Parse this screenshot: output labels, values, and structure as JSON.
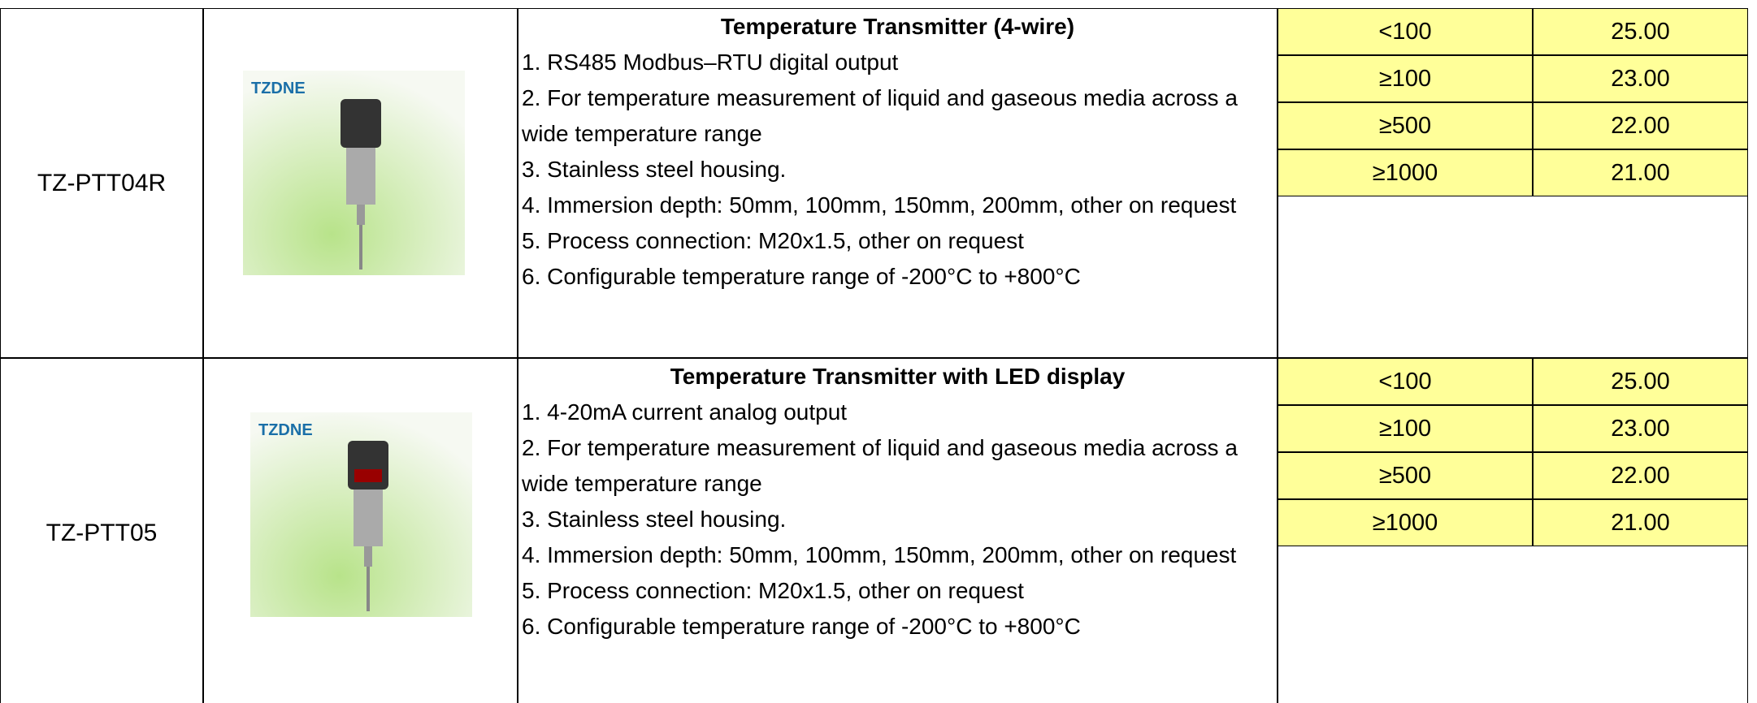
{
  "rows": [
    {
      "model": "TZ-PTT04R",
      "logo": "TZDNE",
      "title": "Temperature Transmitter (4-wire)",
      "lines": [
        "1. RS485 Modbus–RTU digital output",
        "2. For temperature measurement of liquid and gaseous media across a wide temperature range",
        "3. Stainless steel housing.",
        "4. Immersion depth: 50mm, 100mm, 150mm, 200mm, other on request",
        "5. Process connection: M20x1.5, other on request",
        "6. Configurable temperature range of -200°C to +800°C"
      ],
      "prices": [
        [
          "<100",
          "25.00"
        ],
        [
          "≥100",
          "23.00"
        ],
        [
          "≥500",
          "22.00"
        ],
        [
          "≥1000",
          "21.00"
        ]
      ]
    },
    {
      "model": "TZ-PTT05",
      "logo": "TZDNE",
      "title": "Temperature Transmitter with LED display",
      "lines": [
        "1. 4-20mA current analog output",
        "2. For temperature measurement of liquid and gaseous media across a wide temperature range",
        "3. Stainless steel housing.",
        "4. Immersion depth: 50mm, 100mm, 150mm, 200mm, other on request",
        "5. Process connection: M20x1.5, other on request",
        "6. Configurable temperature range of -200°C to +800°C"
      ],
      "prices": [
        [
          "<100",
          "25.00"
        ],
        [
          "≥100",
          "23.00"
        ],
        [
          "≥500",
          "22.00"
        ],
        [
          "≥1000",
          "21.00"
        ]
      ]
    }
  ]
}
